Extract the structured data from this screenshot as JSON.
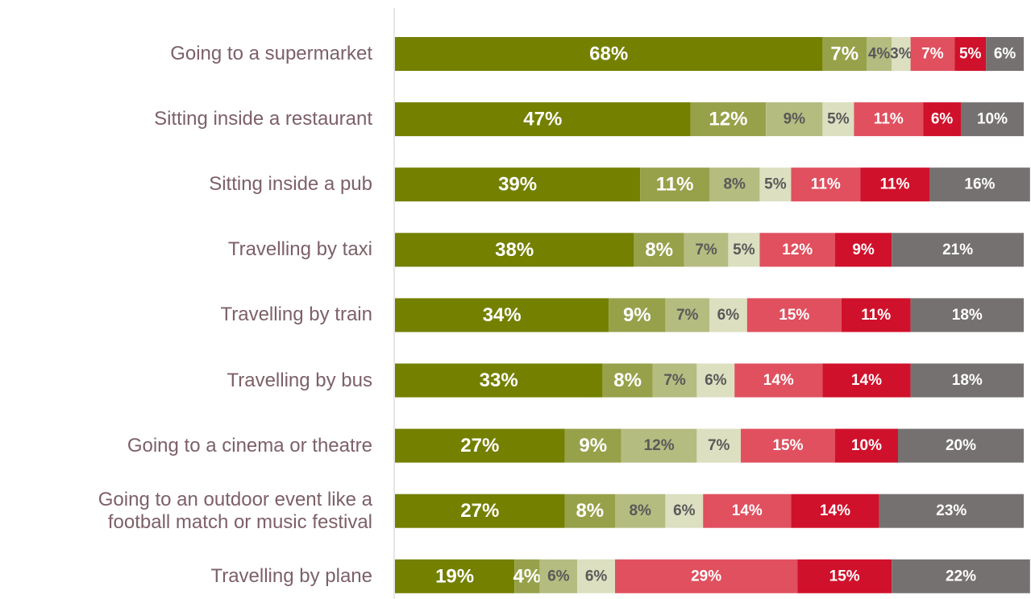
{
  "chart_data": {
    "type": "stacked_bar_horizontal",
    "categories": [
      "Going to a supermarket",
      "Sitting inside a restaurant",
      "Sitting inside a pub",
      "Travelling by taxi",
      "Travelling by train",
      "Travelling by bus",
      "Going to a cinema or theatre",
      "Going to an outdoor event like a\nfootball match or music festival",
      "Travelling by plane"
    ],
    "series": [
      {
        "color": "#738000",
        "values": [
          68,
          47,
          39,
          38,
          34,
          33,
          27,
          27,
          19
        ],
        "value_labels": [
          "68%",
          "47%",
          "39%",
          "38%",
          "34%",
          "33%",
          "27%",
          "27%",
          "19%"
        ]
      },
      {
        "color": "#97a14a",
        "values": [
          7,
          12,
          11,
          8,
          9,
          8,
          9,
          8,
          4
        ],
        "value_labels": [
          "7%",
          "12%",
          "11%",
          "8%",
          "9%",
          "8%",
          "9%",
          "8%",
          "4%"
        ]
      },
      {
        "color": "#b5bc80",
        "values": [
          4,
          9,
          8,
          7,
          7,
          7,
          12,
          8,
          6
        ],
        "value_labels": [
          "4%",
          "9%",
          "8%",
          "7%",
          "7%",
          "7%",
          "12%",
          "8%",
          "6%"
        ]
      },
      {
        "color": "#dcdfc0",
        "values": [
          3,
          5,
          5,
          5,
          6,
          6,
          7,
          6,
          6
        ],
        "value_labels": [
          "3%",
          "5%",
          "5%",
          "5%",
          "6%",
          "6%",
          "7%",
          "6%",
          "6%"
        ]
      },
      {
        "color": "#e0505f",
        "values": [
          7,
          11,
          11,
          12,
          15,
          14,
          15,
          14,
          29
        ],
        "value_labels": [
          "7%",
          "11%",
          "11%",
          "12%",
          "15%",
          "14%",
          "15%",
          "14%",
          "29%"
        ]
      },
      {
        "color": "#d0112b",
        "values": [
          5,
          6,
          11,
          9,
          11,
          14,
          10,
          14,
          15
        ],
        "value_labels": [
          "5%",
          "6%",
          "11%",
          "9%",
          "11%",
          "14%",
          "10%",
          "14%",
          "15%"
        ]
      },
      {
        "color": "#767171",
        "values": [
          6,
          10,
          16,
          21,
          18,
          18,
          20,
          23,
          22
        ],
        "value_labels": [
          "6%",
          "10%",
          "16%",
          "21%",
          "18%",
          "18%",
          "20%",
          "23%",
          "22%"
        ]
      }
    ]
  }
}
